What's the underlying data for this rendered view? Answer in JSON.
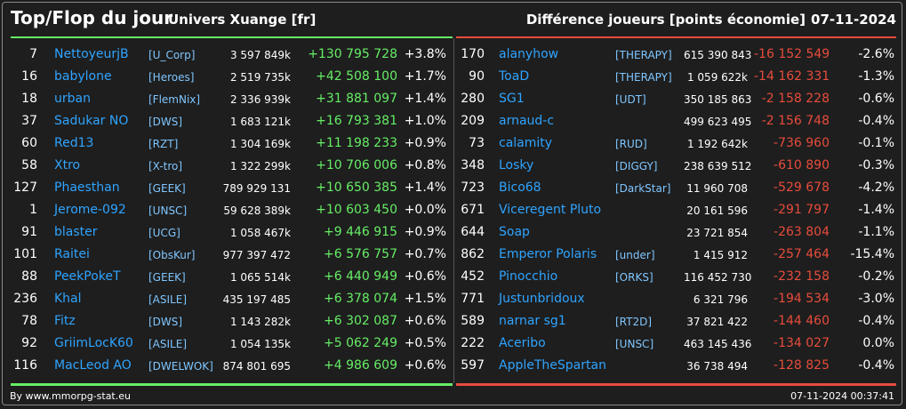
{
  "header": {
    "title": "Top/Flop du jour",
    "universe": "Univers Xuange [fr]",
    "difference": "Différence joueurs [points économie]",
    "date": "07-11-2024"
  },
  "top": [
    {
      "rank": "7",
      "name": "NettoyeurjB",
      "alliance": "[U_Corp]",
      "points": "3 597 849k",
      "delta": "+130 795 728",
      "pct": "+3.8%"
    },
    {
      "rank": "16",
      "name": "babylone",
      "alliance": "[Heroes]",
      "points": "2 519 735k",
      "delta": "+42 508 100",
      "pct": "+1.7%"
    },
    {
      "rank": "18",
      "name": "urban",
      "alliance": "[FlemNix]",
      "points": "2 336 939k",
      "delta": "+31 881 097",
      "pct": "+1.4%"
    },
    {
      "rank": "37",
      "name": "Sadukar NO",
      "alliance": "[DWS]",
      "points": "1 683 121k",
      "delta": "+16 793 381",
      "pct": "+1.0%"
    },
    {
      "rank": "60",
      "name": "Red13",
      "alliance": "[RZT]",
      "points": "1 304 169k",
      "delta": "+11 198 233",
      "pct": "+0.9%"
    },
    {
      "rank": "58",
      "name": "Xtro",
      "alliance": "[X-tro]",
      "points": "1 322 299k",
      "delta": "+10 706 006",
      "pct": "+0.8%"
    },
    {
      "rank": "127",
      "name": "Phaesthan",
      "alliance": "[GEEK]",
      "points": "789 929 131",
      "delta": "+10 650 385",
      "pct": "+1.4%"
    },
    {
      "rank": "1",
      "name": "Jerome-092",
      "alliance": "[UNSC]",
      "points": "59 628 389k",
      "delta": "+10 603 450",
      "pct": "+0.0%"
    },
    {
      "rank": "91",
      "name": "blaster",
      "alliance": "[UCG]",
      "points": "1 058 467k",
      "delta": "+9 446 915",
      "pct": "+0.9%"
    },
    {
      "rank": "101",
      "name": "Raitei",
      "alliance": "[ObsKur]",
      "points": "977 397 472",
      "delta": "+6 576 757",
      "pct": "+0.7%"
    },
    {
      "rank": "88",
      "name": "PeekPokeT",
      "alliance": "[GEEK]",
      "points": "1 065 514k",
      "delta": "+6 440 949",
      "pct": "+0.6%"
    },
    {
      "rank": "236",
      "name": "Khal",
      "alliance": "[ASILE]",
      "points": "435 197 485",
      "delta": "+6 378 074",
      "pct": "+1.5%"
    },
    {
      "rank": "78",
      "name": "Fitz",
      "alliance": "[DWS]",
      "points": "1 143 282k",
      "delta": "+6 302 087",
      "pct": "+0.6%"
    },
    {
      "rank": "92",
      "name": "GriimLocK60",
      "alliance": "[ASILE]",
      "points": "1 054 135k",
      "delta": "+5 062 249",
      "pct": "+0.5%"
    },
    {
      "rank": "116",
      "name": "MacLeod AO",
      "alliance": "[DWELWOK]",
      "points": "874 801 695",
      "delta": "+4 986 609",
      "pct": "+0.6%"
    }
  ],
  "flop": [
    {
      "rank": "170",
      "name": "alanyhow",
      "alliance": "[THERAPY]",
      "points": "615 390 843",
      "delta": "-16 152 549",
      "pct": "-2.6%"
    },
    {
      "rank": "90",
      "name": "ToaD",
      "alliance": "[THERAPY]",
      "points": "1 059 622k",
      "delta": "-14 162 331",
      "pct": "-1.3%"
    },
    {
      "rank": "280",
      "name": "SG1",
      "alliance": "[UDT]",
      "points": "350 185 863",
      "delta": "-2 158 228",
      "pct": "-0.6%"
    },
    {
      "rank": "209",
      "name": "arnaud-c",
      "alliance": "",
      "points": "499 623 495",
      "delta": "-2 156 748",
      "pct": "-0.4%"
    },
    {
      "rank": "73",
      "name": "calamity",
      "alliance": "[RUD]",
      "points": "1 192 642k",
      "delta": "-736 960",
      "pct": "-0.1%"
    },
    {
      "rank": "348",
      "name": "Losky",
      "alliance": "[DIGGY]",
      "points": "238 639 512",
      "delta": "-610 890",
      "pct": "-0.3%"
    },
    {
      "rank": "723",
      "name": "Bico68",
      "alliance": "[DarkStar]",
      "points": "11 960 708",
      "delta": "-529 678",
      "pct": "-4.2%"
    },
    {
      "rank": "671",
      "name": "Viceregent Pluto",
      "alliance": "",
      "points": "20 161 596",
      "delta": "-291 797",
      "pct": "-1.4%"
    },
    {
      "rank": "644",
      "name": "Soap",
      "alliance": "",
      "points": "23 721 854",
      "delta": "-263 804",
      "pct": "-1.1%"
    },
    {
      "rank": "862",
      "name": "Emperor Polaris",
      "alliance": "[under]",
      "points": "1 415 912",
      "delta": "-257 464",
      "pct": "-15.4%"
    },
    {
      "rank": "452",
      "name": "Pinocchio",
      "alliance": "[ORKS]",
      "points": "116 452 730",
      "delta": "-232 158",
      "pct": "-0.2%"
    },
    {
      "rank": "771",
      "name": "Justunbridoux",
      "alliance": "",
      "points": "6 321 796",
      "delta": "-194 534",
      "pct": "-3.0%"
    },
    {
      "rank": "589",
      "name": "narnar sg1",
      "alliance": "[RT2D]",
      "points": "37 821 422",
      "delta": "-144 460",
      "pct": "-0.4%"
    },
    {
      "rank": "222",
      "name": "Aceribo",
      "alliance": "[UNSC]",
      "points": "463 145 436",
      "delta": "-134 027",
      "pct": "0.0%"
    },
    {
      "rank": "597",
      "name": "AppleTheSpartan",
      "alliance": "",
      "points": "36 738 494",
      "delta": "-128 825",
      "pct": "-0.4%"
    }
  ],
  "footer": {
    "source": "By www.mmorpg-stat.eu",
    "timestamp": "07-11-2024 00:37:41"
  },
  "colors": {
    "gain": "#66ee66",
    "loss": "#e74c3c",
    "name": "#2fa4ff",
    "background": "#1e1e1e"
  }
}
